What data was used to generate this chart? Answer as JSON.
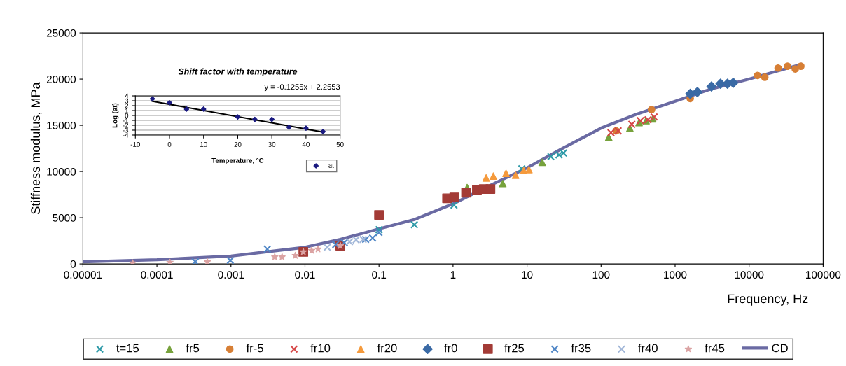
{
  "chart_data": [
    {
      "type": "scatter",
      "xlabel": "Frequency, Hz",
      "ylabel": "Stiffness modulus, MPa",
      "log": "x",
      "legend": "bottom",
      "grid": false,
      "xlim": [
        1e-05,
        100000
      ],
      "xticks": [
        {
          "value": 1e-05,
          "label": "0.00001"
        },
        {
          "value": 0.0001,
          "label": "0.0001"
        },
        {
          "value": 0.001,
          "label": "0.001"
        },
        {
          "value": 0.01,
          "label": "0.01"
        },
        {
          "value": 0.1,
          "label": "0.1"
        },
        {
          "value": 1,
          "label": "1"
        },
        {
          "value": 10,
          "label": "10"
        },
        {
          "value": 100,
          "label": "100"
        },
        {
          "value": 1000,
          "label": "1000"
        },
        {
          "value": 10000,
          "label": "10000"
        },
        {
          "value": 100000,
          "label": "100000"
        }
      ],
      "ylim": [
        0,
        25000
      ],
      "yticks": [
        0,
        5000,
        10000,
        15000,
        20000,
        25000
      ],
      "series": [
        {
          "name": "t=15",
          "color": "#2e9aa8",
          "marker": "cross",
          "x": [
            0.1,
            0.3,
            1.03,
            8.5,
            21,
            27,
            31
          ],
          "values": [
            3700,
            4240,
            6360,
            10300,
            11600,
            11800,
            12000
          ]
        },
        {
          "name": "fr5",
          "color": "#77a23c",
          "marker": "triangle",
          "x": [
            1.55,
            4.7,
            16,
            127,
            245,
            326,
            405,
            500
          ],
          "values": [
            8260,
            8700,
            11000,
            13700,
            14700,
            15300,
            15500,
            15700
          ]
        },
        {
          "name": "fr-5",
          "color": "#d77f35",
          "marker": "circle",
          "x": [
            160,
            480,
            1600,
            13000,
            16300,
            24600,
            33000,
            42000,
            50000
          ],
          "values": [
            14400,
            16700,
            17900,
            20400,
            20200,
            21200,
            21400,
            21100,
            21400
          ]
        },
        {
          "name": "fr10",
          "color": "#d64545",
          "marker": "cross",
          "x": [
            136,
            170,
            260,
            340,
            430,
            520
          ],
          "values": [
            14200,
            14400,
            15100,
            15500,
            15600,
            15900
          ]
        },
        {
          "name": "fr20",
          "color": "#f59a3c",
          "marker": "triangle",
          "x": [
            2.8,
            3.5,
            5.2,
            7,
            9,
            10.6
          ],
          "values": [
            9300,
            9500,
            9800,
            9600,
            10100,
            10200
          ]
        },
        {
          "name": "fr0",
          "color": "#3a6aa5",
          "marker": "diamond",
          "x": [
            1600,
            2000,
            3100,
            4100,
            5100,
            6100
          ],
          "values": [
            18400,
            18600,
            19200,
            19500,
            19500,
            19600
          ]
        },
        {
          "name": "fr25",
          "color": "#a33b36",
          "marker": "square",
          "x": [
            0.0095,
            0.03,
            0.1,
            0.83,
            1.04,
            1.5,
            2.1,
            2.6,
            3.2
          ],
          "values": [
            1300,
            1970,
            5300,
            7100,
            7200,
            7700,
            8000,
            8100,
            8100
          ]
        },
        {
          "name": "fr35",
          "color": "#4f86c6",
          "marker": "cross",
          "x": [
            0.00033,
            0.00098,
            0.0031,
            0.026,
            0.034,
            0.066,
            0.082,
            0.1
          ],
          "values": [
            230,
            380,
            1600,
            2100,
            2300,
            2650,
            2800,
            3400
          ]
        },
        {
          "name": "fr40",
          "color": "#a3b8d9",
          "marker": "cross",
          "x": [
            0.02,
            0.04,
            0.049,
            0.061
          ],
          "values": [
            1800,
            2400,
            2600,
            2650
          ]
        },
        {
          "name": "fr45",
          "color": "#dba3a3",
          "marker": "star",
          "x": [
            4.7e-05,
            0.00015,
            0.00048,
            0.0039,
            0.0049,
            0.0074,
            0.0095,
            0.0123,
            0.015,
            0.03
          ],
          "values": [
            100,
            150,
            230,
            750,
            750,
            900,
            1300,
            1450,
            1600,
            1970
          ]
        },
        {
          "name": "CD",
          "color": "#6a6aa3",
          "type": "line",
          "marker": "none",
          "x": [
            1e-05,
            0.0001,
            0.001,
            0.003,
            0.01,
            0.03,
            0.1,
            0.3,
            1,
            3,
            10,
            30,
            100,
            300,
            1000,
            3000,
            10000,
            50000
          ],
          "values": [
            230,
            450,
            850,
            1300,
            1800,
            2650,
            3800,
            4800,
            6500,
            8400,
            10400,
            12500,
            14700,
            16200,
            17600,
            18900,
            20000,
            21600
          ]
        }
      ]
    },
    {
      "type": "scatter",
      "title": "Shift factor with temperature",
      "xlabel": "Temperature, °C",
      "ylabel": "Log (at)",
      "legend": "bottom right",
      "grid": "y",
      "xlim": [
        -10,
        50
      ],
      "xticks": [
        -10,
        0,
        10,
        20,
        30,
        40,
        50
      ],
      "ylim": [
        -4,
        4
      ],
      "yticks": [
        -4,
        -3,
        -2,
        -1,
        0,
        1,
        2,
        3,
        4
      ],
      "annotations": [
        "y = -0.1255x + 2.2553"
      ],
      "series": [
        {
          "name": "at",
          "color": "#1a1a80",
          "marker": "diamond",
          "x": [
            -5,
            0,
            5,
            10,
            20,
            25,
            30,
            35,
            40,
            45
          ],
          "values": [
            3.4,
            2.6,
            1.3,
            1.3,
            -0.3,
            -0.8,
            -0.8,
            -2.4,
            -2.6,
            -3.3
          ]
        },
        {
          "color": "#000000",
          "type": "line",
          "marker": "none",
          "x": [
            -5,
            45
          ],
          "values": [
            2.9,
            -3.4
          ]
        }
      ]
    }
  ]
}
